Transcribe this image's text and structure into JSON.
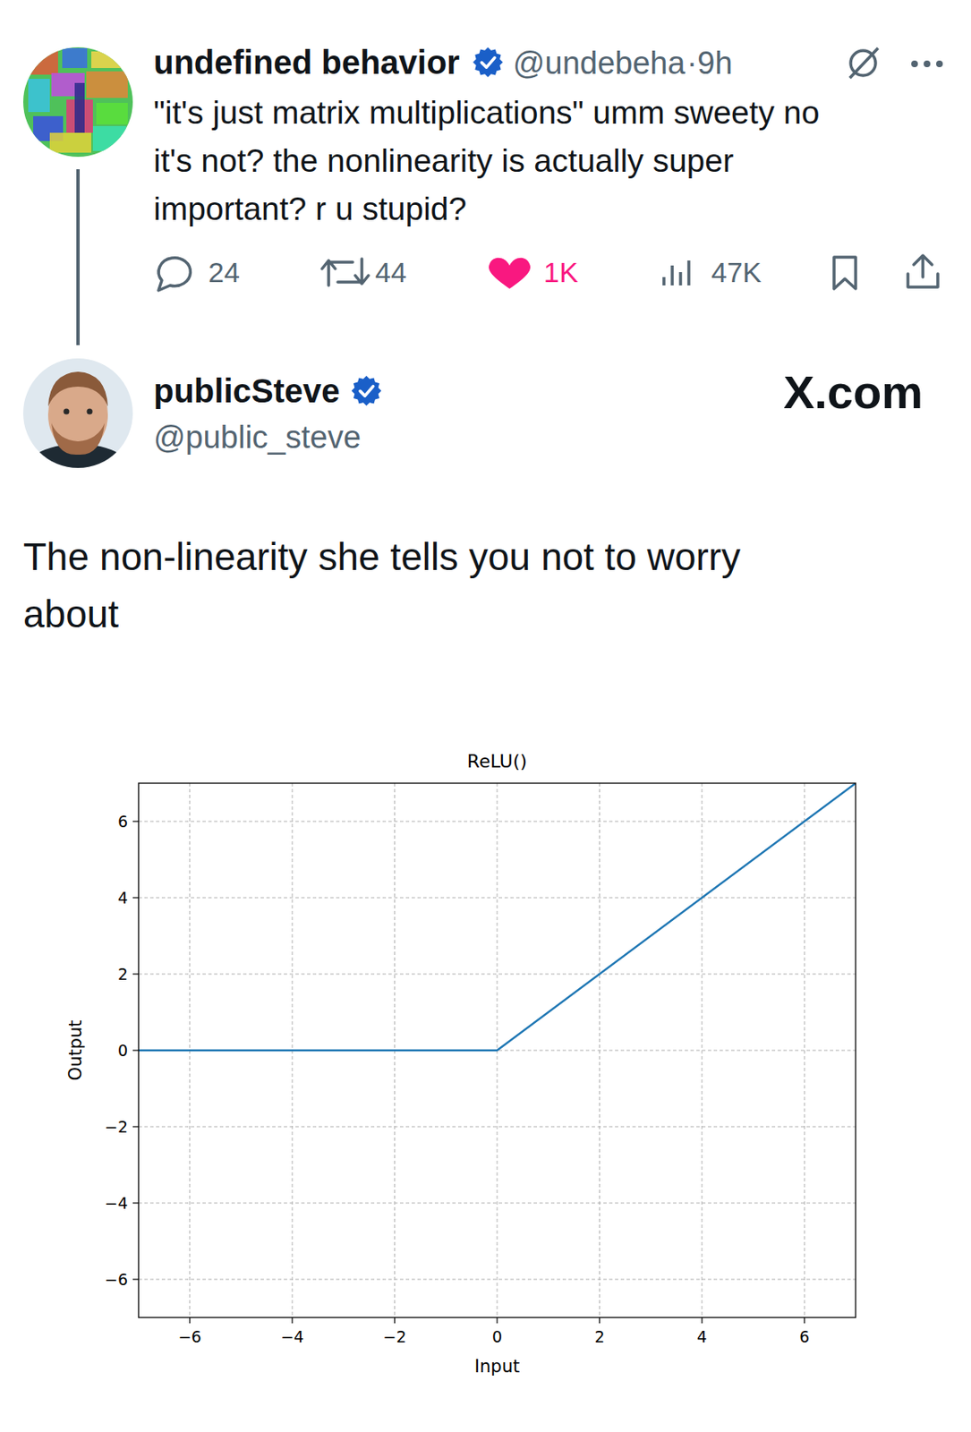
{
  "tweets": [
    {
      "display_name": "undefined behavior",
      "handle": "@undebeha",
      "time": "·9h",
      "text_lines": [
        "\"it's just matrix multiplications\" umm sweety no",
        "it's not? the nonlinearity is actually super",
        "important? r u stupid?"
      ],
      "stats": {
        "replies": "24",
        "reposts": "44",
        "likes": "1K",
        "views": "47K"
      }
    },
    {
      "display_name": "publicSteve",
      "handle": "@public_steve",
      "text_lines": [
        "The non-linearity she tells you not to worry",
        "about"
      ]
    }
  ],
  "brand": "X.com",
  "chart_data": {
    "type": "line",
    "title": "ReLU()",
    "x_label": "Input",
    "y_label": "Output",
    "x": [
      -7,
      0,
      7
    ],
    "values": [
      0,
      0,
      7
    ],
    "color": "#1f77b4",
    "xlim": [
      -7,
      7
    ],
    "ylim": [
      -7,
      7
    ],
    "xticks": [
      {
        "value": -6,
        "label": "−6"
      },
      {
        "value": -4,
        "label": "−4"
      },
      {
        "value": -2,
        "label": "−2"
      },
      0,
      2,
      4,
      6
    ],
    "yticks": [
      {
        "value": -6,
        "label": "−6"
      },
      {
        "value": -4,
        "label": "−4"
      },
      {
        "value": -2,
        "label": "−2"
      },
      0,
      2,
      4,
      6
    ],
    "grid": true
  }
}
